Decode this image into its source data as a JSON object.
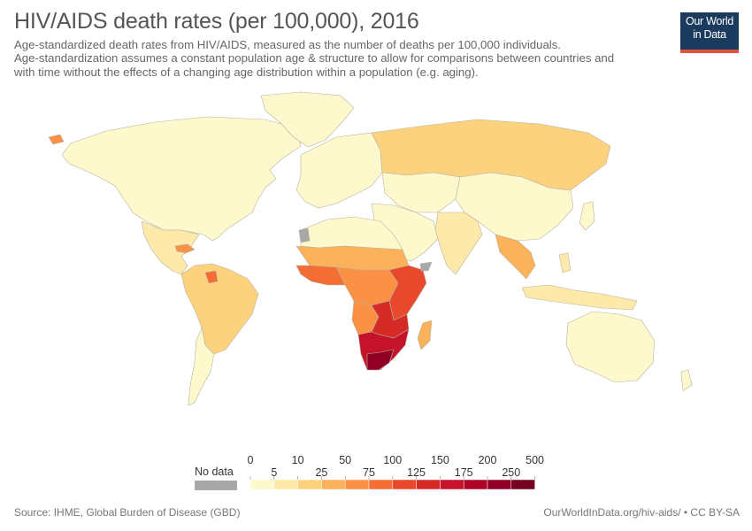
{
  "header": {
    "title": "HIV/AIDS death rates (per 100,000), 2016",
    "subtitle_lines": [
      "Age-standardized death rates from HIV/AIDS, measured as the number of deaths per 100,000 individuals.",
      "Age-standardization assumes a constant population age & structure to allow for comparisons between countries and",
      "with time without the effects of a changing age distribution within a population (e.g. aging)."
    ]
  },
  "logo": {
    "line1": "Our World",
    "line2": "in Data"
  },
  "legend": {
    "no_data_label": "No data",
    "no_data_color": "#a8a8a8",
    "upper_labels": [
      "0",
      "10",
      "50",
      "100",
      "150",
      "200",
      "500"
    ],
    "lower_labels": [
      "5",
      "25",
      "75",
      "125",
      "175",
      "250"
    ],
    "bins": [
      {
        "from": "0",
        "to": "5",
        "color": "#fef9cc"
      },
      {
        "from": "5",
        "to": "10",
        "color": "#fde9a9"
      },
      {
        "from": "10",
        "to": "25",
        "color": "#fdd27f"
      },
      {
        "from": "25",
        "to": "50",
        "color": "#fcb15b"
      },
      {
        "from": "50",
        "to": "75",
        "color": "#fa9145"
      },
      {
        "from": "75",
        "to": "100",
        "color": "#f46d35"
      },
      {
        "from": "100",
        "to": "125",
        "color": "#e8492c"
      },
      {
        "from": "125",
        "to": "150",
        "color": "#d62a26"
      },
      {
        "from": "150",
        "to": "175",
        "color": "#c4132a"
      },
      {
        "from": "175",
        "to": "200",
        "color": "#ad0528"
      },
      {
        "from": "200",
        "to": "250",
        "color": "#930026"
      },
      {
        "from": "250",
        "to": "500",
        "color": "#75001f"
      }
    ]
  },
  "regions": [
    {
      "name": "north-america",
      "color": "#fef9cc"
    },
    {
      "name": "greenland",
      "color": "#fef9cc"
    },
    {
      "name": "central-america",
      "color": "#fde9a9"
    },
    {
      "name": "caribbean",
      "color": "#fa9145"
    },
    {
      "name": "south-america",
      "color": "#fdd27f"
    },
    {
      "name": "south-america-south",
      "color": "#fef9cc"
    },
    {
      "name": "guyana",
      "color": "#f46d35"
    },
    {
      "name": "europe",
      "color": "#fef9cc"
    },
    {
      "name": "russia",
      "color": "#fdd27f"
    },
    {
      "name": "central-asia",
      "color": "#fef9cc"
    },
    {
      "name": "middle-east",
      "color": "#fef9cc"
    },
    {
      "name": "south-asia",
      "color": "#fde9a9"
    },
    {
      "name": "southeast-asia",
      "color": "#fcb15b"
    },
    {
      "name": "east-asia",
      "color": "#fef9cc"
    },
    {
      "name": "indonesia",
      "color": "#fde9a9"
    },
    {
      "name": "australia",
      "color": "#fef9cc"
    },
    {
      "name": "north-africa",
      "color": "#fef9cc"
    },
    {
      "name": "sahel",
      "color": "#fcb15b"
    },
    {
      "name": "west-africa",
      "color": "#f46d35"
    },
    {
      "name": "central-africa",
      "color": "#fa9145"
    },
    {
      "name": "east-africa",
      "color": "#e8492c"
    },
    {
      "name": "angola",
      "color": "#fa9145"
    },
    {
      "name": "zambia",
      "color": "#d62a26"
    },
    {
      "name": "southern-africa",
      "color": "#c4132a"
    },
    {
      "name": "south-africa-core",
      "color": "#930026"
    },
    {
      "name": "madagascar",
      "color": "#fcb15b"
    },
    {
      "name": "no-data-areas",
      "color": "#a8a8a8"
    }
  ],
  "footer": {
    "source": "Source: IHME, Global Burden of Disease (GBD)",
    "credit": "OurWorldInData.org/hiv-aids/ • CC BY-SA"
  }
}
